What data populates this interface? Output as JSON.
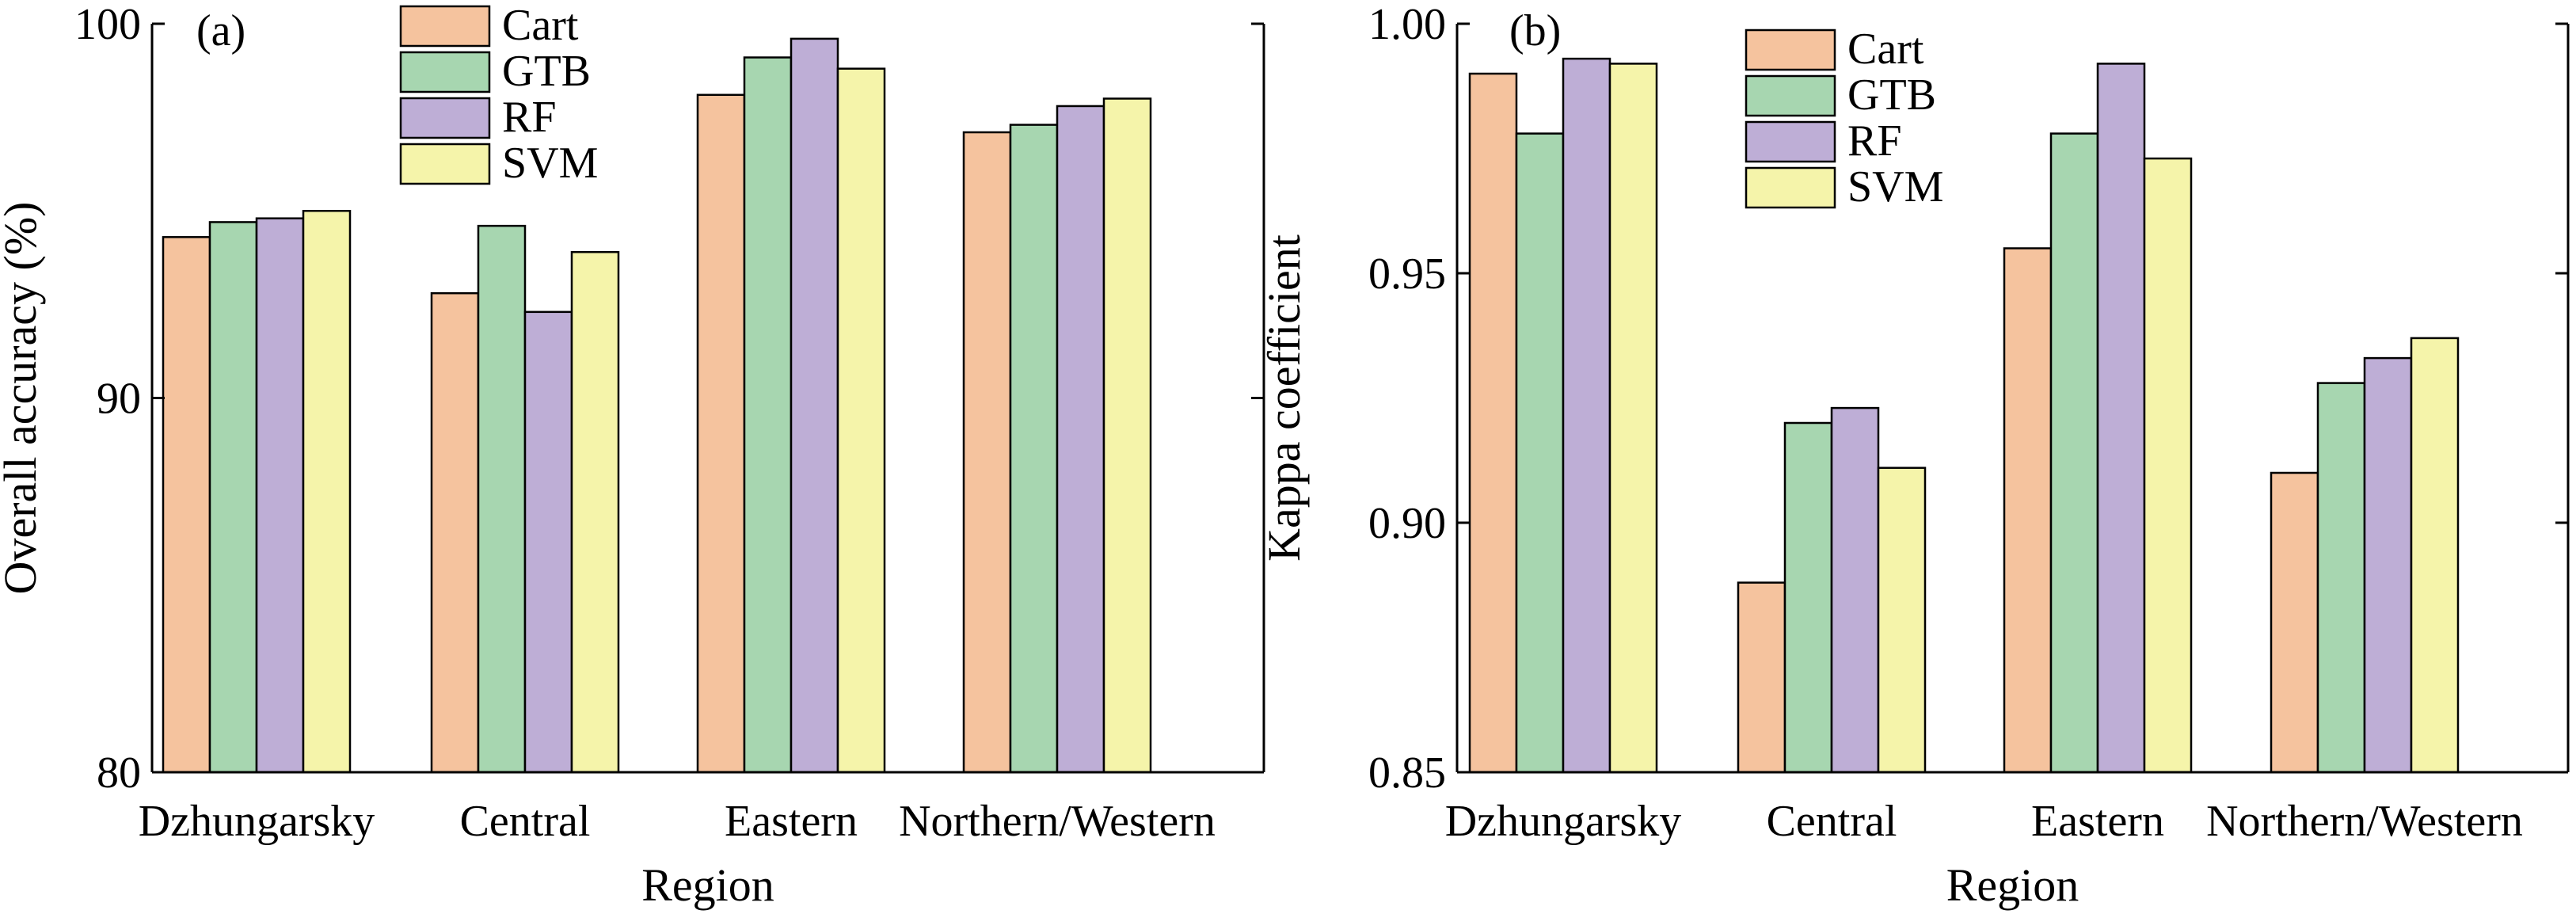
{
  "chart_data": [
    {
      "type": "bar",
      "panel_label": "(a)",
      "xlabel": "Region",
      "ylabel": "Overall accuracy (%)",
      "categories": [
        "Dzhungarsky",
        "Central",
        "Eastern",
        "Northern/Western"
      ],
      "ylim": [
        80,
        100
      ],
      "yticks": [
        80,
        90,
        100
      ],
      "ytick_labels": [
        "80",
        "90",
        "100"
      ],
      "legend_position": "top-center",
      "grid": false,
      "series": [
        {
          "name": "Cart",
          "color": "#F5C39E",
          "values": [
            94.3,
            92.8,
            98.1,
            97.1
          ]
        },
        {
          "name": "GTB",
          "color": "#A7D6B0",
          "values": [
            94.7,
            94.6,
            99.1,
            97.3
          ]
        },
        {
          "name": "RF",
          "color": "#BEAED6",
          "values": [
            94.8,
            92.3,
            99.6,
            97.8
          ]
        },
        {
          "name": "SVM",
          "color": "#F5F4AA",
          "values": [
            95.0,
            93.9,
            98.8,
            98.0
          ]
        }
      ]
    },
    {
      "type": "bar",
      "panel_label": "(b)",
      "xlabel": "Region",
      "ylabel": "Kappa coefficient",
      "categories": [
        "Dzhungarsky",
        "Central",
        "Eastern",
        "Northern/Western"
      ],
      "ylim": [
        0.85,
        1.0
      ],
      "yticks": [
        0.85,
        0.9,
        0.95,
        1.0
      ],
      "ytick_labels": [
        "0.85",
        "0.90",
        "0.95",
        "1.00"
      ],
      "legend_position": "top-center",
      "grid": false,
      "series": [
        {
          "name": "Cart",
          "color": "#F5C39E",
          "values": [
            0.99,
            0.888,
            0.955,
            0.91
          ]
        },
        {
          "name": "GTB",
          "color": "#A7D6B0",
          "values": [
            0.978,
            0.92,
            0.978,
            0.928
          ]
        },
        {
          "name": "RF",
          "color": "#BEAED6",
          "values": [
            0.993,
            0.923,
            0.992,
            0.933
          ]
        },
        {
          "name": "SVM",
          "color": "#F5F4AA",
          "values": [
            0.992,
            0.911,
            0.973,
            0.937
          ]
        }
      ]
    }
  ]
}
